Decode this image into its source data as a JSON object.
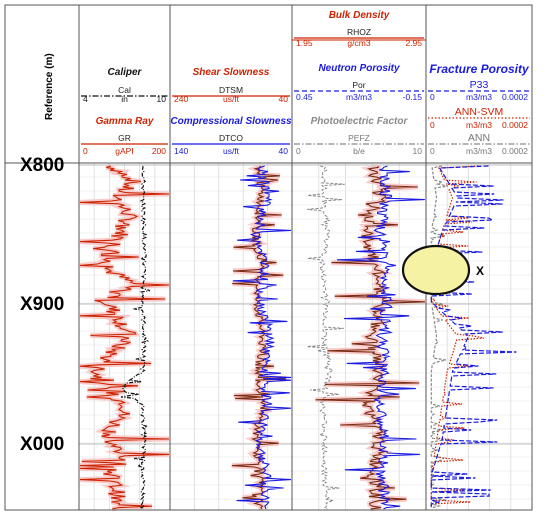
{
  "reference_label": "Reference (m)",
  "depth_labels": [
    "X800",
    "X900",
    "X000"
  ],
  "colors": {
    "caliper": "#111111",
    "gamma_ray": "#cc2200",
    "shear": "#7a2a10",
    "compressional": "#1a1ae0",
    "neutron": "#1a1ae0",
    "density": "#7a2a10",
    "pefz": "#8a8a8a",
    "p33": "#1a1ae0",
    "ann_svm": "#cc2200",
    "ann": "#8a8a8a",
    "highlight": "#f06a6a",
    "ellipse_fill": "#f6f2a4"
  },
  "tracks": [
    {
      "headers": [
        {
          "title": "Caliper",
          "curve": "Cal",
          "min": "4",
          "unit": "in",
          "max": "10",
          "color": "#111111",
          "line": "dashdot"
        },
        {
          "title": "Gamma Ray",
          "curve": "GR",
          "min": "0",
          "unit": "gAPI",
          "max": "200",
          "color": "#cc2200",
          "line": "solid"
        }
      ]
    },
    {
      "headers": [
        {
          "title": "Shear Slowness",
          "curve": "DTSM",
          "min": "240",
          "unit": "us/ft",
          "max": "40",
          "color": "#cc2200",
          "line": "solid"
        },
        {
          "title": "Compressional Slowness",
          "curve": "DTCO",
          "min": "140",
          "unit": "us/ft",
          "max": "40",
          "color": "#1a1ae0",
          "line": "solid"
        }
      ]
    },
    {
      "headers": [
        {
          "title": "Bulk Density",
          "curve": "RHOZ",
          "min": "1.95",
          "unit": "g/cm3",
          "max": "2.95",
          "color": "#cc2200",
          "line": "solid"
        },
        {
          "title": "Neutron Porosity",
          "curve": "Por",
          "min": "0.45",
          "unit": "m3/m3",
          "max": "-0.15",
          "color": "#1a1ae0",
          "line": "dashed"
        },
        {
          "title": "Photoelectric Factor",
          "curve": "PEFZ",
          "min": "0",
          "unit": "b/e",
          "max": "10",
          "color": "#8a8a8a",
          "line": "dashdot"
        }
      ]
    },
    {
      "headers": [
        {
          "title": "Fracture Porosity",
          "curve": "P33",
          "min": "0",
          "unit": "m3/m3",
          "max": "0.0002",
          "color": "#1a1ae0",
          "line": "dashed"
        },
        {
          "title": "",
          "curve": "ANN-SVM",
          "min": "0",
          "unit": "m3/m3",
          "max": "0.0002",
          "color": "#cc2200",
          "line": "dotted"
        },
        {
          "title": "",
          "curve": "ANN",
          "min": "0",
          "unit": "m3/m3",
          "max": "0.0002",
          "color": "#8a8a8a",
          "line": "dashdot"
        }
      ]
    }
  ],
  "annotation": {
    "label": "X"
  },
  "chart_data": {
    "type": "line",
    "depth_axis": {
      "label": "Reference (m)",
      "ticks": [
        "X800",
        "X900",
        "X000"
      ],
      "direction": "increasing downward"
    },
    "grid": true,
    "series": [
      {
        "name": "Cal",
        "track": 0,
        "range": [
          4,
          10
        ],
        "points": [
          [
            0,
            8.3
          ],
          [
            0.1,
            8.2
          ],
          [
            0.2,
            8.3
          ],
          [
            0.3,
            8.3
          ],
          [
            0.4,
            8.2
          ],
          [
            0.5,
            8.3
          ],
          [
            0.6,
            8.2
          ],
          [
            0.65,
            6.8
          ],
          [
            0.7,
            8.2
          ],
          [
            0.8,
            8.3
          ],
          [
            0.9,
            8.2
          ],
          [
            1,
            8.2
          ]
        ]
      },
      {
        "name": "GR",
        "track": 0,
        "range": [
          0,
          200
        ],
        "points": [
          [
            0,
            60
          ],
          [
            0.05,
            120
          ],
          [
            0.1,
            80
          ],
          [
            0.15,
            110
          ],
          [
            0.2,
            95
          ],
          [
            0.25,
            70
          ],
          [
            0.3,
            55
          ],
          [
            0.35,
            120
          ],
          [
            0.4,
            60
          ],
          [
            0.45,
            90
          ],
          [
            0.5,
            110
          ],
          [
            0.55,
            70
          ],
          [
            0.6,
            40
          ],
          [
            0.65,
            50
          ],
          [
            0.7,
            110
          ],
          [
            0.75,
            80
          ],
          [
            0.8,
            65
          ],
          [
            0.85,
            100
          ],
          [
            0.9,
            70
          ],
          [
            0.95,
            85
          ],
          [
            1,
            75
          ]
        ]
      },
      {
        "name": "DTSM",
        "track": 1,
        "range": [
          240,
          40
        ],
        "points": [
          [
            0,
            95
          ],
          [
            0.1,
            90
          ],
          [
            0.2,
            100
          ],
          [
            0.3,
            92
          ],
          [
            0.4,
            98
          ],
          [
            0.5,
            88
          ],
          [
            0.6,
            95
          ],
          [
            0.7,
            90
          ],
          [
            0.8,
            100
          ],
          [
            0.9,
            92
          ],
          [
            1,
            95
          ]
        ]
      },
      {
        "name": "DTCO",
        "track": 1,
        "range": [
          140,
          40
        ],
        "points": [
          [
            0,
            65
          ],
          [
            0.1,
            60
          ],
          [
            0.2,
            68
          ],
          [
            0.3,
            62
          ],
          [
            0.4,
            66
          ],
          [
            0.5,
            58
          ],
          [
            0.6,
            64
          ],
          [
            0.7,
            60
          ],
          [
            0.8,
            67
          ],
          [
            0.9,
            61
          ],
          [
            1,
            63
          ]
        ]
      },
      {
        "name": "RHOZ",
        "track": 2,
        "range": [
          1.95,
          2.95
        ],
        "points": [
          [
            0,
            2.55
          ],
          [
            0.1,
            2.6
          ],
          [
            0.2,
            2.5
          ],
          [
            0.3,
            2.58
          ],
          [
            0.4,
            2.62
          ],
          [
            0.5,
            2.55
          ],
          [
            0.6,
            2.6
          ],
          [
            0.7,
            2.52
          ],
          [
            0.8,
            2.6
          ],
          [
            0.9,
            2.56
          ],
          [
            1,
            2.58
          ]
        ]
      },
      {
        "name": "Por",
        "track": 2,
        "range": [
          0.45,
          -0.15
        ],
        "points": [
          [
            0,
            0.05
          ],
          [
            0.1,
            0.03
          ],
          [
            0.2,
            0.06
          ],
          [
            0.3,
            0.04
          ],
          [
            0.4,
            0.02
          ],
          [
            0.5,
            0.05
          ],
          [
            0.6,
            0.03
          ],
          [
            0.7,
            0.06
          ],
          [
            0.8,
            0.04
          ],
          [
            0.9,
            0.05
          ],
          [
            1,
            0.03
          ]
        ]
      },
      {
        "name": "PEFZ",
        "track": 2,
        "range": [
          0,
          10
        ],
        "points": [
          [
            0,
            2.5
          ],
          [
            0.1,
            2.3
          ],
          [
            0.2,
            2.7
          ],
          [
            0.3,
            2.2
          ],
          [
            0.4,
            2.6
          ],
          [
            0.5,
            2.4
          ],
          [
            0.6,
            2.8
          ],
          [
            0.7,
            2.3
          ],
          [
            0.8,
            2.5
          ],
          [
            0.9,
            2.4
          ],
          [
            1,
            2.6
          ]
        ]
      },
      {
        "name": "P33",
        "track": 3,
        "range": [
          0,
          0.0002
        ],
        "points": [
          [
            0,
            2e-05
          ],
          [
            0.1,
            6e-05
          ],
          [
            0.2,
            3e-05
          ],
          [
            0.3,
            1e-05
          ],
          [
            0.4,
            1e-05
          ],
          [
            0.5,
            8e-05
          ],
          [
            0.6,
            5e-05
          ],
          [
            0.7,
            4e-05
          ],
          [
            0.8,
            3e-05
          ],
          [
            0.9,
            1e-05
          ],
          [
            1,
            1e-05
          ]
        ]
      },
      {
        "name": "ANN-SVM",
        "track": 3,
        "range": [
          0,
          0.0002
        ],
        "points": [
          [
            0,
            2e-05
          ],
          [
            0.1,
            5e-05
          ],
          [
            0.2,
            3e-05
          ],
          [
            0.3,
            1e-05
          ],
          [
            0.4,
            1e-05
          ],
          [
            0.5,
            6e-05
          ],
          [
            0.6,
            4e-05
          ],
          [
            0.7,
            3e-05
          ],
          [
            0.8,
            2e-05
          ],
          [
            0.9,
            1e-05
          ],
          [
            1,
            1e-05
          ]
        ]
      },
      {
        "name": "ANN",
        "track": 3,
        "range": [
          0,
          0.0002
        ],
        "points": [
          [
            0,
            1e-05
          ],
          [
            0.1,
            2e-05
          ],
          [
            0.2,
            1e-05
          ],
          [
            0.3,
            1e-05
          ],
          [
            0.4,
            1e-05
          ],
          [
            0.5,
            2e-05
          ],
          [
            0.6,
            1e-05
          ],
          [
            0.7,
            1e-05
          ],
          [
            0.8,
            1e-05
          ],
          [
            0.9,
            1e-05
          ],
          [
            1,
            1e-05
          ]
        ]
      }
    ]
  }
}
